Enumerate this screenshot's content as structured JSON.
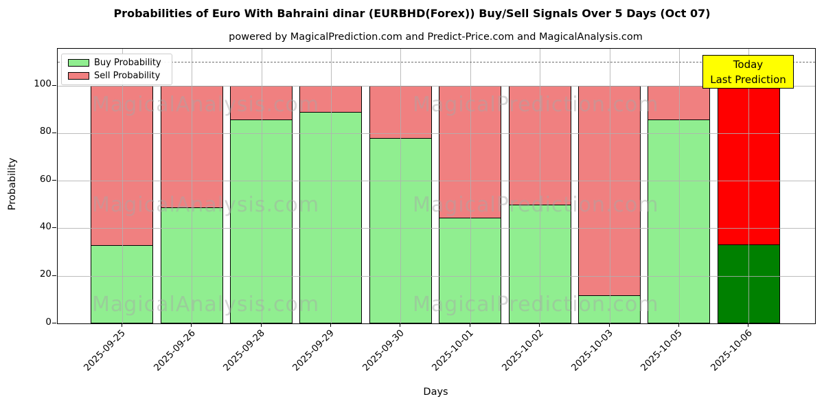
{
  "figure": {
    "title": "Probabilities of Euro With Bahraini dinar (EURBHD(Forex)) Buy/Sell Signals Over 5 Days (Oct 07)",
    "subtitle": "powered by MagicalPrediction.com and Predict-Price.com and MagicalAnalysis.com"
  },
  "legend": {
    "items": [
      {
        "label": "Buy Probability",
        "color": "#90ee90"
      },
      {
        "label": "Sell Probability",
        "color": "#f08080"
      }
    ]
  },
  "annotation": {
    "line1": "Today",
    "line2": "Last Prediction",
    "bg_color": "#ffff00"
  },
  "watermarks": {
    "left_text": "MagicalAnalysis.com",
    "right_text": "MagicalPrediction.com"
  },
  "chart_data": {
    "type": "bar",
    "stacked": true,
    "title": "Probabilities of Euro With Bahraini dinar (EURBHD(Forex)) Buy/Sell Signals Over 5 Days (Oct 07)",
    "xlabel": "Days",
    "ylabel": "Probability",
    "categories": [
      "2025-09-25",
      "2025-09-26",
      "2025-09-28",
      "2025-09-29",
      "2025-09-30",
      "2025-10-01",
      "2025-10-02",
      "2025-10-03",
      "2025-10-05",
      "2025-10-06"
    ],
    "series": [
      {
        "name": "Buy Probability",
        "color": "#90ee90",
        "today_color": "#008000",
        "values": [
          33,
          49,
          86,
          89,
          78,
          44.5,
          50,
          12,
          86,
          33.33
        ]
      },
      {
        "name": "Sell Probability",
        "color": "#f08080",
        "today_color": "#ff0000",
        "values": [
          67,
          51,
          14,
          11,
          22,
          55.5,
          50,
          88,
          14,
          66.67
        ]
      }
    ],
    "today_index": 9,
    "yticks": [
      0,
      20,
      40,
      60,
      80,
      100
    ],
    "ylim": [
      0,
      115.5
    ],
    "dashed_line_y": 110,
    "grid": true,
    "legend_position": "upper left"
  }
}
